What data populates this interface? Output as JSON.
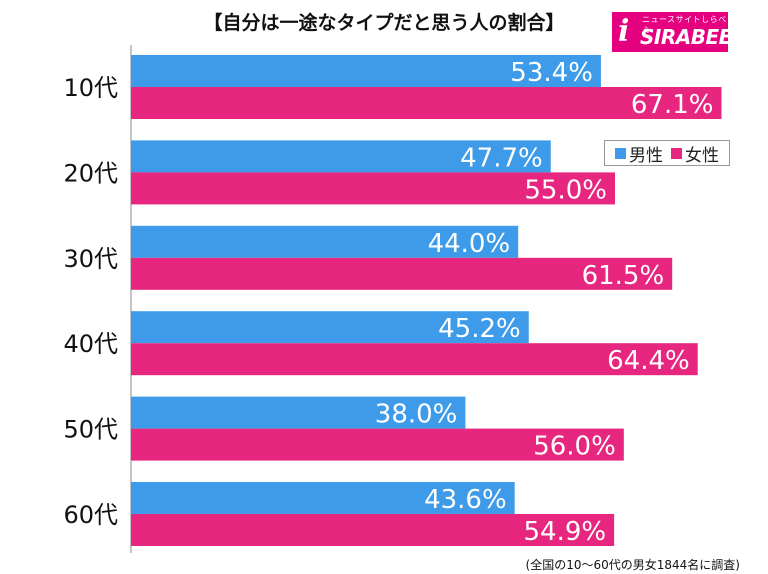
{
  "logo": {
    "subtitle": "ニュースサイトしらべぇ",
    "name": "SIRABEE",
    "mark": "i"
  },
  "footnote": "(全国の10〜60代の男女1844名に調査)",
  "chart_data": {
    "type": "bar",
    "orientation": "horizontal",
    "title": "【自分は一途なタイプだと思う人の割合】",
    "categories": [
      "10代",
      "20代",
      "30代",
      "40代",
      "50代",
      "60代"
    ],
    "series": [
      {
        "name": "男性",
        "color": "#3d9be9",
        "values": [
          53.4,
          47.7,
          44.0,
          45.2,
          38.0,
          43.6
        ]
      },
      {
        "name": "女性",
        "color": "#e6267f",
        "values": [
          67.1,
          55.0,
          61.5,
          64.4,
          56.0,
          54.9
        ]
      }
    ],
    "value_suffix": "%",
    "xlim": [
      0,
      100
    ],
    "legend_position": "right",
    "grid": false
  }
}
